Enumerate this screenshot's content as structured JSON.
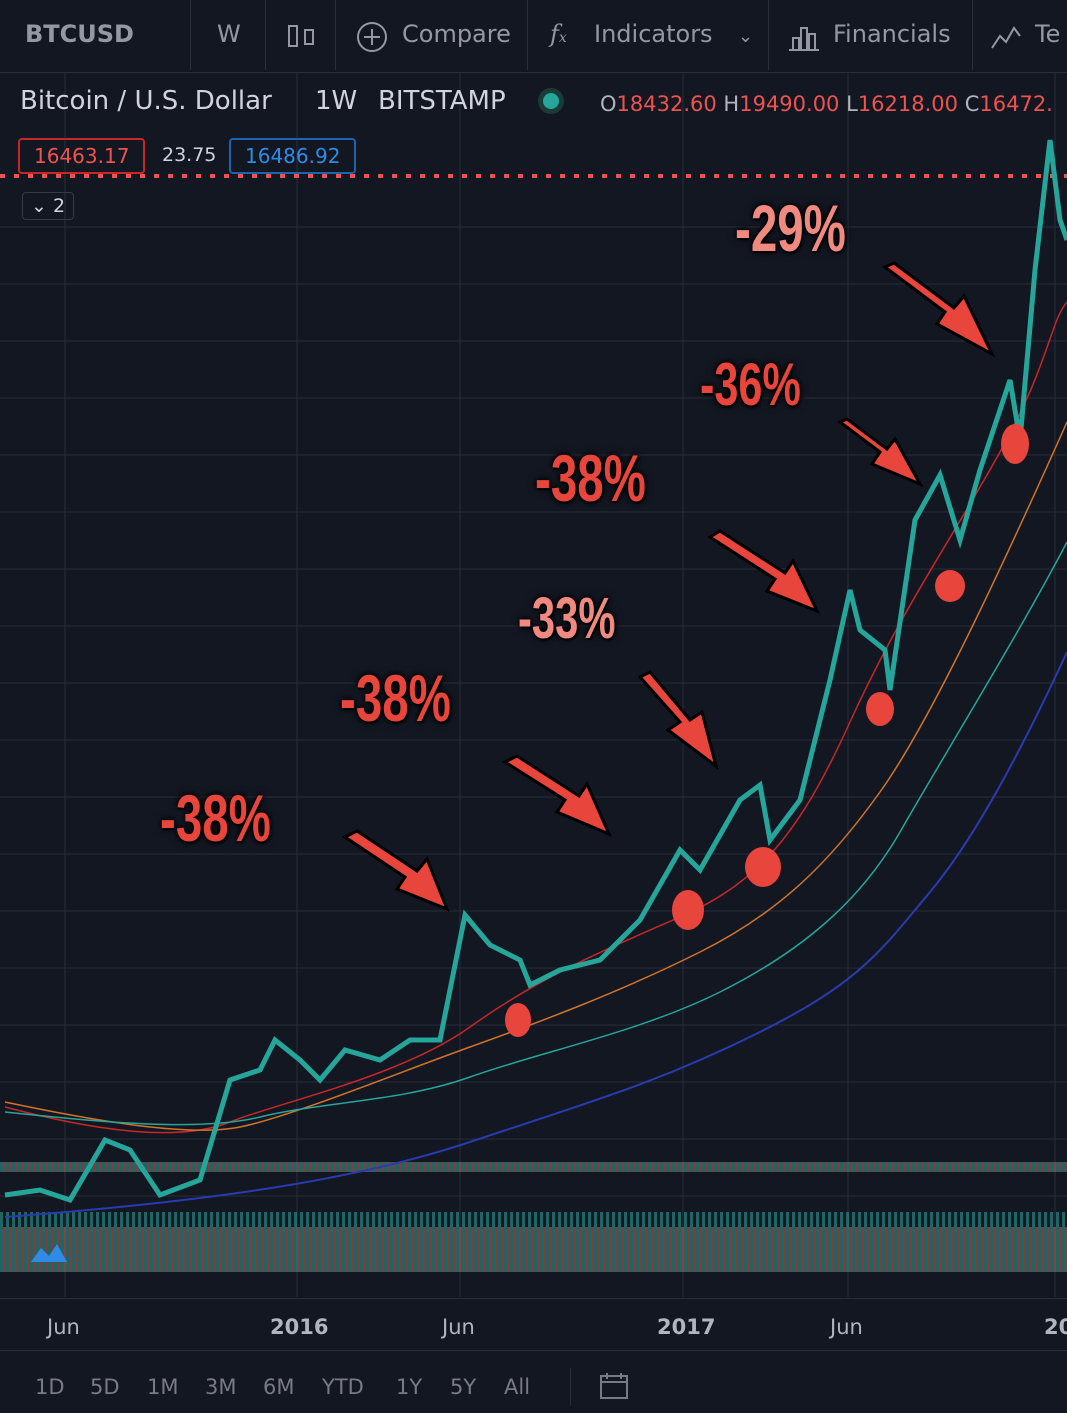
{
  "toolbar": {
    "symbol": "BTCUSD",
    "interval": "W",
    "compare": "Compare",
    "indicators": "Indicators",
    "financials": "Financials",
    "more": "Te"
  },
  "legend": {
    "name": "Bitcoin / U.S. Dollar",
    "interval": "1W",
    "exchange": "BITSTAMP",
    "open_label": "O",
    "open": "18432.60",
    "high_label": "H",
    "high": "19490.00",
    "low_label": "L",
    "low": "16218.00",
    "close_label": "C",
    "close": "16472."
  },
  "price_boxes": {
    "bid": "16463.17",
    "spread": "23.75",
    "ask": "16486.92"
  },
  "collapse_count": "2",
  "annotations": [
    "-38%",
    "-38%",
    "-33%",
    "-38%",
    "-36%",
    "-29%"
  ],
  "time_axis": [
    "Jun",
    "2016",
    "Jun",
    "2017",
    "Jun",
    "20"
  ],
  "ranges": [
    "1D",
    "5D",
    "1M",
    "3M",
    "6M",
    "YTD",
    "1Y",
    "5Y",
    "All"
  ]
}
